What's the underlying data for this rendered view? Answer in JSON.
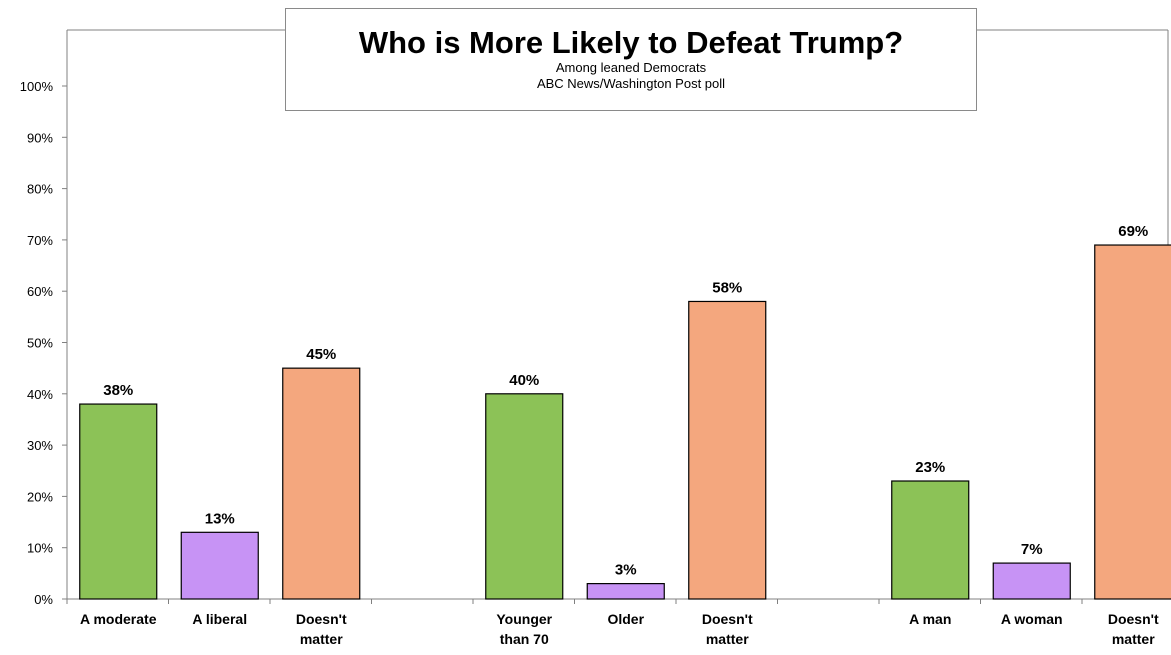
{
  "chart_data": {
    "type": "bar",
    "title": "Who is More Likely to Defeat Trump?",
    "subtitle": [
      "Among leaned Democrats",
      "ABC News/Washington Post poll"
    ],
    "ylim": [
      0,
      100
    ],
    "yticks": [
      "0%",
      "10%",
      "20%",
      "30%",
      "40%",
      "50%",
      "60%",
      "70%",
      "80%",
      "90%",
      "100%"
    ],
    "grid": false,
    "value_suffix": "%",
    "groups": [
      {
        "categories": [
          [
            "A moderate"
          ],
          [
            "A liberal"
          ],
          [
            "Doesn't",
            "matter"
          ]
        ],
        "values": [
          38,
          13,
          45
        ]
      },
      {
        "categories": [
          [
            "Younger",
            "than 70"
          ],
          [
            "Older"
          ],
          [
            "Doesn't",
            "matter"
          ]
        ],
        "values": [
          40,
          3,
          58
        ]
      },
      {
        "categories": [
          [
            "A man"
          ],
          [
            "A woman"
          ],
          [
            "Doesn't",
            "matter"
          ]
        ],
        "values": [
          23,
          7,
          69
        ]
      }
    ],
    "colors": [
      "#8cc257",
      "#c793f5",
      "#f4a77e"
    ]
  }
}
